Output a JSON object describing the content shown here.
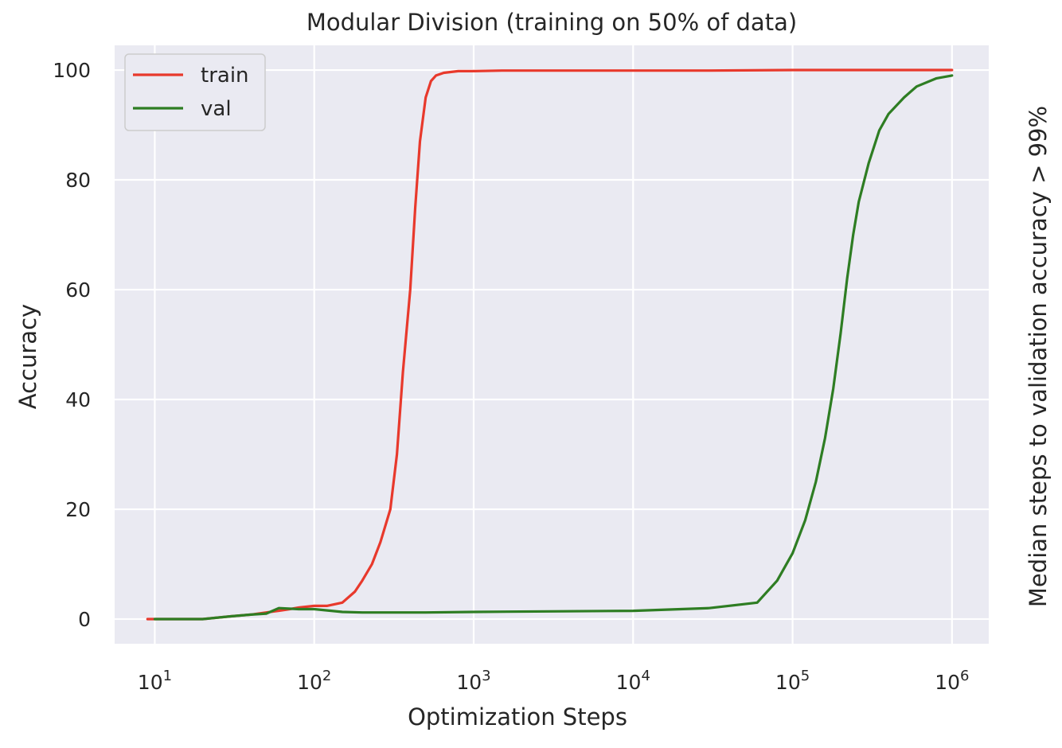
{
  "chart_data": {
    "type": "line",
    "title": "Modular Division (training on 50% of data)",
    "xlabel": "Optimization Steps",
    "ylabel": "Accuracy",
    "ylabel_right": "Median steps to validation accuracy > 99%",
    "xscale": "log",
    "xlim": [
      5.6,
      1700000
    ],
    "ylim": [
      -4.5,
      104.5
    ],
    "grid": true,
    "legend_position": "top-left",
    "x_ticks": [
      {
        "value": 10,
        "base": "10",
        "exp": "1"
      },
      {
        "value": 100,
        "base": "10",
        "exp": "2"
      },
      {
        "value": 1000,
        "base": "10",
        "exp": "3"
      },
      {
        "value": 10000,
        "base": "10",
        "exp": "4"
      },
      {
        "value": 100000,
        "base": "10",
        "exp": "5"
      },
      {
        "value": 1000000,
        "base": "10",
        "exp": "6"
      }
    ],
    "y_ticks": [
      0,
      20,
      40,
      60,
      80,
      100
    ],
    "series": [
      {
        "name": "train",
        "color": "#e8392c",
        "x": [
          9,
          10,
          20,
          30,
          40,
          50,
          60,
          70,
          80,
          100,
          120,
          150,
          180,
          200,
          230,
          260,
          300,
          330,
          360,
          400,
          430,
          460,
          500,
          540,
          580,
          650,
          800,
          1000,
          1500,
          2000,
          3000,
          5000,
          10000,
          30000,
          100000,
          300000,
          1000000
        ],
        "values": [
          0,
          0,
          0,
          0.5,
          0.8,
          1.2,
          1.5,
          1.8,
          2.1,
          2.4,
          2.4,
          3.0,
          5.0,
          7.0,
          10.0,
          14.0,
          20.0,
          30.0,
          45.0,
          60.0,
          75.0,
          87.0,
          95.0,
          98.0,
          99.0,
          99.5,
          99.8,
          99.8,
          99.9,
          99.9,
          99.9,
          99.9,
          99.9,
          99.9,
          100,
          100,
          100
        ]
      },
      {
        "name": "val",
        "color": "#2e7d23",
        "x": [
          10,
          20,
          30,
          40,
          50,
          60,
          80,
          100,
          150,
          200,
          300,
          500,
          1000,
          3000,
          10000,
          30000,
          60000,
          80000,
          100000,
          120000,
          140000,
          160000,
          180000,
          200000,
          220000,
          240000,
          260000,
          300000,
          350000,
          400000,
          500000,
          600000,
          800000,
          1000000
        ],
        "values": [
          0,
          0,
          0.5,
          0.8,
          1.0,
          2.0,
          1.8,
          1.8,
          1.3,
          1.2,
          1.2,
          1.2,
          1.3,
          1.4,
          1.5,
          2.0,
          3.0,
          7.0,
          12.0,
          18.0,
          25.0,
          33.0,
          42.0,
          52.0,
          62.0,
          70.0,
          76.0,
          83.0,
          89.0,
          92.0,
          95.0,
          97.0,
          98.5,
          99.0
        ]
      }
    ]
  }
}
